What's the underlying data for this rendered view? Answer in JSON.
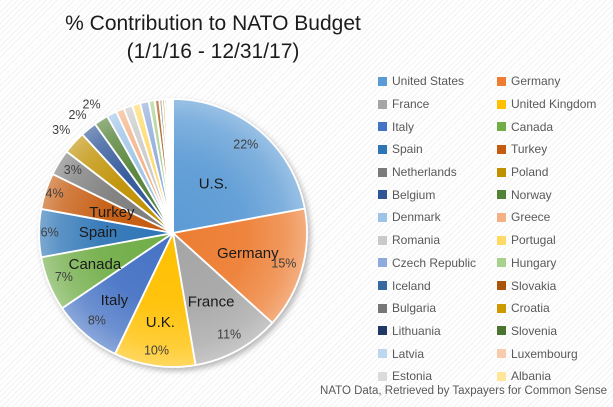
{
  "title": {
    "line1": "% Contribution to NATO Budget",
    "line2": "(1/1/16 - 12/31/17)"
  },
  "footer": "NATO Data, Retrieved by Taxpayers for Common Sense",
  "chart_data": {
    "type": "pie",
    "title": "% Contribution to NATO Budget (1/1/16 - 12/31/17)",
    "legend_position": "right",
    "start_angle_deg": 0,
    "direction": "clockwise",
    "units": "percent",
    "slices": [
      {
        "legend": "United States",
        "value": 22.14,
        "color": "#5B9BD5",
        "name_label": "U.S.",
        "pct_label": "22%",
        "name_r": 0.47,
        "pct_r": 0.85,
        "pct_pos": "in"
      },
      {
        "legend": "Germany",
        "value": 14.65,
        "color": "#ED7D31",
        "name_label": "Germany",
        "pct_label": "15%",
        "name_r": 0.58,
        "pct_r": 0.86,
        "pct_pos": "in"
      },
      {
        "legend": "France",
        "value": 10.63,
        "color": "#A5A5A5",
        "name_label": "France",
        "pct_label": "11%",
        "name_r": 0.59,
        "pct_r": 0.87,
        "pct_pos": "in"
      },
      {
        "legend": "United Kingdom",
        "value": 9.84,
        "color": "#FFC000",
        "name_label": "U.K.",
        "pct_label": "10%",
        "name_r": 0.68,
        "pct_r": 0.89,
        "pct_pos": "in"
      },
      {
        "legend": "Italy",
        "value": 8.41,
        "color": "#4472C4",
        "name_label": "Italy",
        "pct_label": "8%",
        "name_r": 0.67,
        "pct_r": 0.87,
        "pct_pos": "in"
      },
      {
        "legend": "Canada",
        "value": 6.61,
        "color": "#70AD47",
        "name_label": "Canada",
        "pct_label": "7%",
        "name_r": 0.63,
        "pct_r": 0.88,
        "pct_pos": "in"
      },
      {
        "legend": "Spain",
        "value": 5.78,
        "color": "#2E75B6",
        "name_label": "Spain",
        "pct_label": "6%",
        "name_r": 0.56,
        "pct_r": 0.92,
        "pct_pos": "in"
      },
      {
        "legend": "Turkey",
        "value": 4.39,
        "color": "#C55A11",
        "name_label": "Turkey",
        "pct_label": "4%",
        "name_r": 0.48,
        "pct_r": 0.93,
        "pct_pos": "in"
      },
      {
        "legend": "Netherlands",
        "value": 3.16,
        "color": "#7B7B7B",
        "name_label": null,
        "pct_label": "3%",
        "name_r": null,
        "pct_r": 0.88,
        "pct_pos": "in"
      },
      {
        "legend": "Poland",
        "value": 2.77,
        "color": "#BF9000",
        "name_label": null,
        "pct_label": "3%",
        "name_r": null,
        "pct_r": 1.13,
        "pct_pos": "out"
      },
      {
        "legend": "Belgium",
        "value": 1.95,
        "color": "#2F5597",
        "name_label": null,
        "pct_label": "2%",
        "name_r": null,
        "pct_r": 1.13,
        "pct_pos": "out"
      },
      {
        "legend": "Norway",
        "value": 1.72,
        "color": "#538135",
        "name_label": null,
        "pct_label": "2%",
        "name_r": null,
        "pct_r": 1.13,
        "pct_pos": "out"
      },
      {
        "legend": "Denmark",
        "value": 1.21,
        "color": "#9DC3E6",
        "name_label": null,
        "pct_label": null
      },
      {
        "legend": "Greece",
        "value": 0.98,
        "color": "#F4B183",
        "name_label": null,
        "pct_label": null
      },
      {
        "legend": "Romania",
        "value": 1.07,
        "color": "#C9C9C9",
        "name_label": null,
        "pct_label": null
      },
      {
        "legend": "Portugal",
        "value": 0.98,
        "color": "#FFD966",
        "name_label": null,
        "pct_label": null
      },
      {
        "legend": "Czech Republic",
        "value": 1.04,
        "color": "#8FAADC",
        "name_label": null,
        "pct_label": null
      },
      {
        "legend": "Hungary",
        "value": 0.7,
        "color": "#A9D18E",
        "name_label": null,
        "pct_label": null
      },
      {
        "legend": "Iceland",
        "value": 0.05,
        "color": "#35699F",
        "name_label": null,
        "pct_label": null
      },
      {
        "legend": "Slovakia",
        "value": 0.52,
        "color": "#A9540B",
        "name_label": null,
        "pct_label": null
      },
      {
        "legend": "Bulgaria",
        "value": 0.35,
        "color": "#767676",
        "name_label": null,
        "pct_label": null
      },
      {
        "legend": "Croatia",
        "value": 0.31,
        "color": "#CC9A00",
        "name_label": null,
        "pct_label": null
      },
      {
        "legend": "Lithuania",
        "value": 0.24,
        "color": "#1F3864",
        "name_label": null,
        "pct_label": null
      },
      {
        "legend": "Slovenia",
        "value": 0.21,
        "color": "#4A7430",
        "name_label": null,
        "pct_label": null
      },
      {
        "legend": "Latvia",
        "value": 0.16,
        "color": "#BDD7EE",
        "name_label": null,
        "pct_label": null
      },
      {
        "legend": "Luxembourg",
        "value": 0.16,
        "color": "#F8CBAD",
        "name_label": null,
        "pct_label": null
      },
      {
        "legend": "Estonia",
        "value": 0.12,
        "color": "#DBDBDB",
        "name_label": null,
        "pct_label": null
      },
      {
        "legend": "Albania",
        "value": 0.09,
        "color": "#FFE699",
        "name_label": null,
        "pct_label": null
      }
    ]
  }
}
